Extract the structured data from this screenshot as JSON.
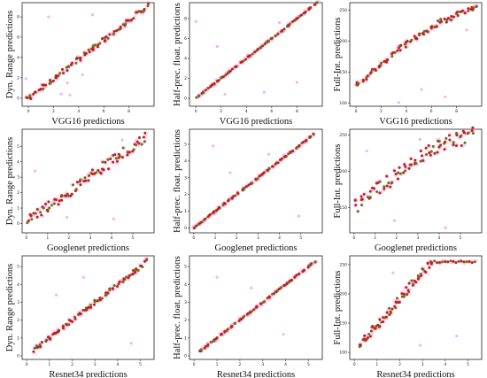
{
  "chart_data": [
    {
      "type": "scatter",
      "xlabel": "VGG16 predictions",
      "ylabel": "Dyn. Range predictions",
      "xlim": [
        -0.5,
        10
      ],
      "ylim": [
        -0.8,
        9.4
      ],
      "xticks": [
        0,
        2,
        4,
        6,
        8
      ],
      "yticks": [
        0,
        2,
        4,
        6,
        8
      ],
      "trend": {
        "x0": -0.2,
        "y0": -0.2,
        "x1": 9.6,
        "y1": 9.2,
        "spread": 0.25
      },
      "pink_points": [
        [
          -0.2,
          1.9
        ],
        [
          4.3,
          2.3
        ],
        [
          2.6,
          0.4
        ],
        [
          3.3,
          0.3
        ],
        [
          1.6,
          8.0
        ],
        [
          5.1,
          8.2
        ],
        [
          3.1,
          1.5
        ]
      ]
    },
    {
      "type": "scatter",
      "xlabel": "VGG16 predictions",
      "ylabel": "Half-prec. float. predictions",
      "xlim": [
        -0.5,
        10
      ],
      "ylim": [
        -0.8,
        9.6
      ],
      "xticks": [
        0,
        2,
        4,
        6,
        8
      ],
      "yticks": [
        0,
        2,
        4,
        6,
        8
      ],
      "trend": {
        "x0": 0.0,
        "y0": 0.0,
        "x1": 9.6,
        "y1": 9.6,
        "spread": 0.05
      },
      "pink_points": [
        [
          0.0,
          7.7
        ],
        [
          2.3,
          0.4
        ],
        [
          5.4,
          0.6
        ],
        [
          6.6,
          7.6
        ],
        [
          8.0,
          1.6
        ],
        [
          1.7,
          5.2
        ]
      ]
    },
    {
      "type": "scatter",
      "xlabel": "VGG16 predictions",
      "ylabel": "Full-Int. predictions",
      "xlim": [
        -0.5,
        10
      ],
      "ylim": [
        95,
        262
      ],
      "xticks": [
        0,
        2,
        4,
        6,
        8
      ],
      "yticks": [
        100,
        150,
        200,
        250
      ],
      "trend": {
        "x0": 0.0,
        "y0": 128,
        "x1": 9.6,
        "y1": 252,
        "spread": 5,
        "curve": 1
      },
      "pink_points": [
        [
          5.2,
          122
        ],
        [
          7.1,
          110
        ],
        [
          3.4,
          101
        ],
        [
          8.8,
          218
        ]
      ]
    },
    {
      "type": "scatter",
      "xlabel": "Googlenet predictions",
      "ylabel": "Dyn. Range predictions",
      "xlim": [
        -0.2,
        6
      ],
      "ylim": [
        -0.6,
        6.1
      ],
      "xticks": [
        0,
        1,
        2,
        3,
        4,
        5
      ],
      "yticks": [
        0,
        1,
        2,
        3,
        4,
        5
      ],
      "trend": {
        "x0": 0.0,
        "y0": 0.1,
        "x1": 5.6,
        "y1": 5.6,
        "spread": 0.35
      },
      "pink_points": [
        [
          4.5,
          5.4
        ],
        [
          1.9,
          0.4
        ],
        [
          4.1,
          0.3
        ],
        [
          0.4,
          3.4
        ]
      ]
    },
    {
      "type": "scatter",
      "xlabel": "Googlenet predictions",
      "ylabel": "Half-prec. float. predictions",
      "xlim": [
        -0.2,
        6
      ],
      "ylim": [
        -0.3,
        5.9
      ],
      "xticks": [
        0,
        1,
        2,
        3,
        4,
        5
      ],
      "yticks": [
        0,
        1,
        2,
        3,
        4,
        5
      ],
      "trend": {
        "x0": 0.0,
        "y0": 0.0,
        "x1": 5.6,
        "y1": 5.6,
        "spread": 0.04
      },
      "pink_points": [
        [
          0.9,
          4.9
        ],
        [
          3.5,
          4.4
        ],
        [
          1.7,
          3.3
        ],
        [
          4.9,
          0.7
        ]
      ]
    },
    {
      "type": "scatter",
      "xlabel": "Googlenet predictions",
      "ylabel": "Full-Int. predictions",
      "xlim": [
        -0.2,
        6
      ],
      "ylim": [
        115,
        258
      ],
      "xticks": [
        0,
        1,
        2,
        3,
        4,
        5
      ],
      "yticks": [
        150,
        200,
        250
      ],
      "trend": {
        "x0": 0.0,
        "y0": 148,
        "x1": 5.6,
        "y1": 250,
        "spread": 11,
        "curve": 1
      },
      "pink_points": [
        [
          3.1,
          244
        ],
        [
          1.9,
          132
        ],
        [
          4.3,
          122
        ],
        [
          0.6,
          228
        ]
      ]
    },
    {
      "type": "scatter",
      "xlabel": "Resnet34 predictions",
      "ylabel": "Dyn. Range predictions",
      "xlim": [
        -0.2,
        5.6
      ],
      "ylim": [
        -0.2,
        5.6
      ],
      "xticks": [
        0,
        1,
        2,
        3,
        4,
        5
      ],
      "yticks": [
        0,
        1,
        2,
        3,
        4,
        5
      ],
      "trend": {
        "x0": 0.3,
        "y0": 0.3,
        "x1": 5.3,
        "y1": 5.3,
        "spread": 0.12
      },
      "pink_points": [
        [
          2.5,
          4.4
        ],
        [
          1.3,
          3.4
        ],
        [
          4.6,
          0.7
        ]
      ]
    },
    {
      "type": "scatter",
      "xlabel": "Resnet34 predictions",
      "ylabel": "Half-prec. float. predictions",
      "xlim": [
        -0.2,
        5.6
      ],
      "ylim": [
        -0.2,
        5.6
      ],
      "xticks": [
        0,
        1,
        2,
        3,
        4,
        5
      ],
      "yticks": [
        0,
        1,
        2,
        3,
        4,
        5
      ],
      "trend": {
        "x0": 0.2,
        "y0": 0.2,
        "x1": 5.3,
        "y1": 5.3,
        "spread": 0.04
      },
      "pink_points": [
        [
          1.0,
          4.4
        ],
        [
          3.9,
          1.2
        ],
        [
          2.5,
          3.8
        ]
      ]
    },
    {
      "type": "scatter",
      "xlabel": "Resnet34 predictions",
      "ylabel": "Full-Int. predictions",
      "xlim": [
        -0.2,
        5.6
      ],
      "ylim": [
        88,
        265
      ],
      "xticks": [
        0,
        1,
        2,
        3,
        4,
        5
      ],
      "yticks": [
        100,
        150,
        200,
        250
      ],
      "trend": {
        "x0": 0.2,
        "y0": 110,
        "x1": 3.4,
        "y1": 255,
        "spread": 8,
        "plateau_end": 5.3,
        "plateau": 255
      },
      "pink_points": [
        [
          1.7,
          236
        ],
        [
          4.5,
          128
        ],
        [
          2.9,
          112
        ]
      ]
    }
  ]
}
